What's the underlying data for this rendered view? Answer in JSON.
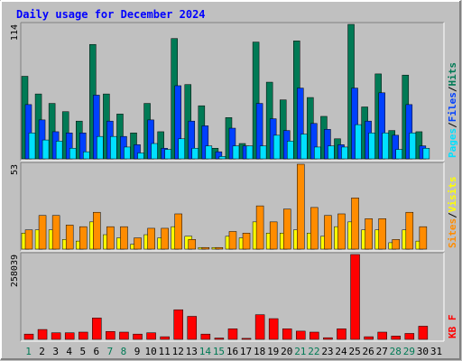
{
  "title": "Daily usage for December 2024",
  "colors": {
    "background": "#c0c0c0",
    "frame_light": "#ffffff",
    "frame_dark": "#808080",
    "title": "#0000ff",
    "hits": "#007a55",
    "files": "#0040ff",
    "pages": "#00e0ff",
    "visits": "#ffff00",
    "sites": "#ff8c00",
    "kbytes": "#ff0000",
    "weekday_label": "#000000",
    "weekend_label": "#007a55"
  },
  "chart_data": [
    {
      "type": "bar",
      "panel": "hits-files-pages",
      "max_label": "114",
      "legend": [
        "Pages",
        "/",
        "Files",
        "/",
        "Hits"
      ],
      "x": [
        1,
        2,
        3,
        4,
        5,
        6,
        7,
        8,
        9,
        10,
        11,
        12,
        13,
        14,
        15,
        16,
        17,
        18,
        19,
        20,
        21,
        22,
        23,
        24,
        25,
        26,
        27,
        28,
        29,
        30,
        31
      ],
      "series": [
        {
          "name": "Hits",
          "color": "#007a55",
          "values": [
            70,
            55,
            47,
            40,
            32,
            97,
            55,
            38,
            22,
            47,
            23,
            102,
            63,
            45,
            9,
            35,
            13,
            99,
            65,
            50,
            100,
            52,
            36,
            17,
            114,
            44,
            72,
            24,
            71,
            23,
            0
          ]
        },
        {
          "name": "Files",
          "color": "#0040ff",
          "values": [
            46,
            33,
            23,
            22,
            22,
            54,
            32,
            19,
            12,
            33,
            9,
            62,
            32,
            28,
            6,
            26,
            11,
            47,
            34,
            24,
            60,
            30,
            25,
            12,
            60,
            32,
            56,
            20,
            46,
            11,
            0
          ]
        },
        {
          "name": "Pages",
          "color": "#00e0ff",
          "values": [
            22,
            16,
            15,
            9,
            6,
            19,
            19,
            10,
            5,
            13,
            8,
            17,
            9,
            11,
            2,
            11,
            11,
            11,
            20,
            15,
            21,
            10,
            11,
            10,
            29,
            22,
            22,
            8,
            22,
            9,
            0
          ]
        }
      ]
    },
    {
      "type": "bar",
      "panel": "visits-sites",
      "max_label": "53",
      "legend": [
        "Sites",
        "/",
        "Visits"
      ],
      "x": [
        1,
        2,
        3,
        4,
        5,
        6,
        7,
        8,
        9,
        10,
        11,
        12,
        13,
        14,
        15,
        16,
        17,
        18,
        19,
        20,
        21,
        22,
        23,
        24,
        25,
        26,
        27,
        28,
        29,
        30,
        31
      ],
      "series": [
        {
          "name": "Visits",
          "color": "#ffff00",
          "values": [
            10,
            12,
            12,
            6,
            5,
            17,
            9,
            7,
            3,
            9,
            7,
            14,
            8,
            1,
            1,
            8,
            7,
            17,
            10,
            10,
            12,
            10,
            8,
            14,
            17,
            12,
            12,
            4,
            12,
            5,
            0
          ]
        },
        {
          "name": "Sites",
          "color": "#ff8c00",
          "values": [
            12,
            21,
            21,
            15,
            14,
            23,
            14,
            14,
            7,
            13,
            13,
            22,
            6,
            1,
            1,
            11,
            10,
            27,
            17,
            25,
            53,
            26,
            21,
            22,
            32,
            19,
            19,
            6,
            23,
            14,
            0
          ]
        }
      ]
    },
    {
      "type": "bar",
      "panel": "kbytes",
      "max_label": "258039",
      "legend": [
        "KB",
        " ",
        "F"
      ],
      "x": [
        1,
        2,
        3,
        4,
        5,
        6,
        7,
        8,
        9,
        10,
        11,
        12,
        13,
        14,
        15,
        16,
        17,
        18,
        19,
        20,
        21,
        22,
        23,
        24,
        25,
        26,
        27,
        28,
        29,
        30,
        31
      ],
      "series": [
        {
          "name": "KB F",
          "color": "#ff0000",
          "values": [
            16000,
            30000,
            20000,
            20000,
            22000,
            65000,
            24000,
            22000,
            16000,
            20000,
            8000,
            90000,
            70000,
            16000,
            4000,
            32000,
            3000,
            75000,
            63000,
            32000,
            25000,
            22000,
            5000,
            32000,
            258039,
            8000,
            22000,
            10000,
            18000,
            40000,
            0
          ]
        }
      ]
    }
  ],
  "days": [
    "1",
    "2",
    "3",
    "4",
    "5",
    "6",
    "7",
    "8",
    "9",
    "10",
    "11",
    "12",
    "13",
    "14",
    "15",
    "16",
    "17",
    "18",
    "19",
    "20",
    "21",
    "22",
    "23",
    "24",
    "25",
    "26",
    "27",
    "28",
    "29",
    "30",
    "31"
  ],
  "weekend_days": [
    1,
    7,
    8,
    14,
    15,
    21,
    22,
    28,
    29
  ]
}
